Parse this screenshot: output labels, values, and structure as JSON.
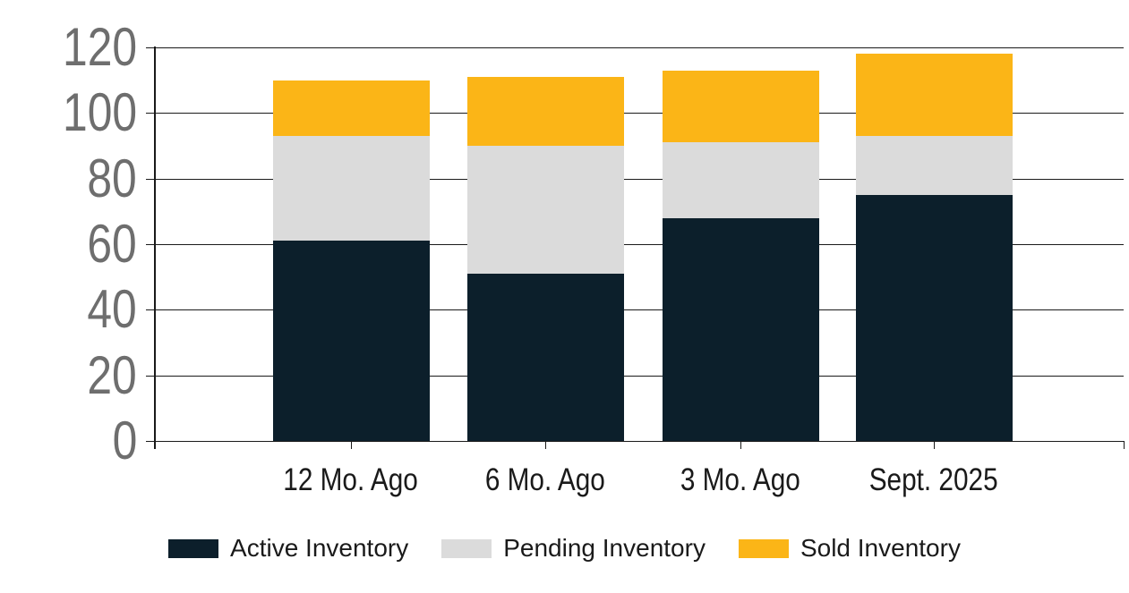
{
  "chart_data": {
    "type": "bar",
    "stacked": true,
    "title": "",
    "categories": [
      "12 Mo. Ago",
      "6 Mo. Ago",
      "3 Mo. Ago",
      "Sept. 2025"
    ],
    "series": [
      {
        "name": "Active Inventory",
        "color": "#0C1F2B",
        "values": [
          61,
          51,
          68,
          75
        ]
      },
      {
        "name": "Pending Inventory",
        "color": "#DBDBDB",
        "values": [
          32,
          39,
          23,
          18
        ]
      },
      {
        "name": "Sold Inventory",
        "color": "#FBB517",
        "values": [
          17,
          21,
          22,
          25
        ]
      }
    ],
    "stack_totals": [
      110,
      111,
      113,
      118
    ],
    "y_ticks": [
      "0",
      "20",
      "40",
      "60",
      "80",
      "100",
      "120"
    ],
    "ylim": [
      0,
      120
    ],
    "xlabel": "",
    "ylabel": "",
    "grid": true,
    "legend_position": "bottom",
    "colors": {
      "background": "#FFFFFF",
      "gridline": "#1A1A1A",
      "y_tick_label": "#6E6E6E",
      "x_tick_label": "#1A1A1A",
      "legend_text": "#1A1A1A"
    }
  }
}
